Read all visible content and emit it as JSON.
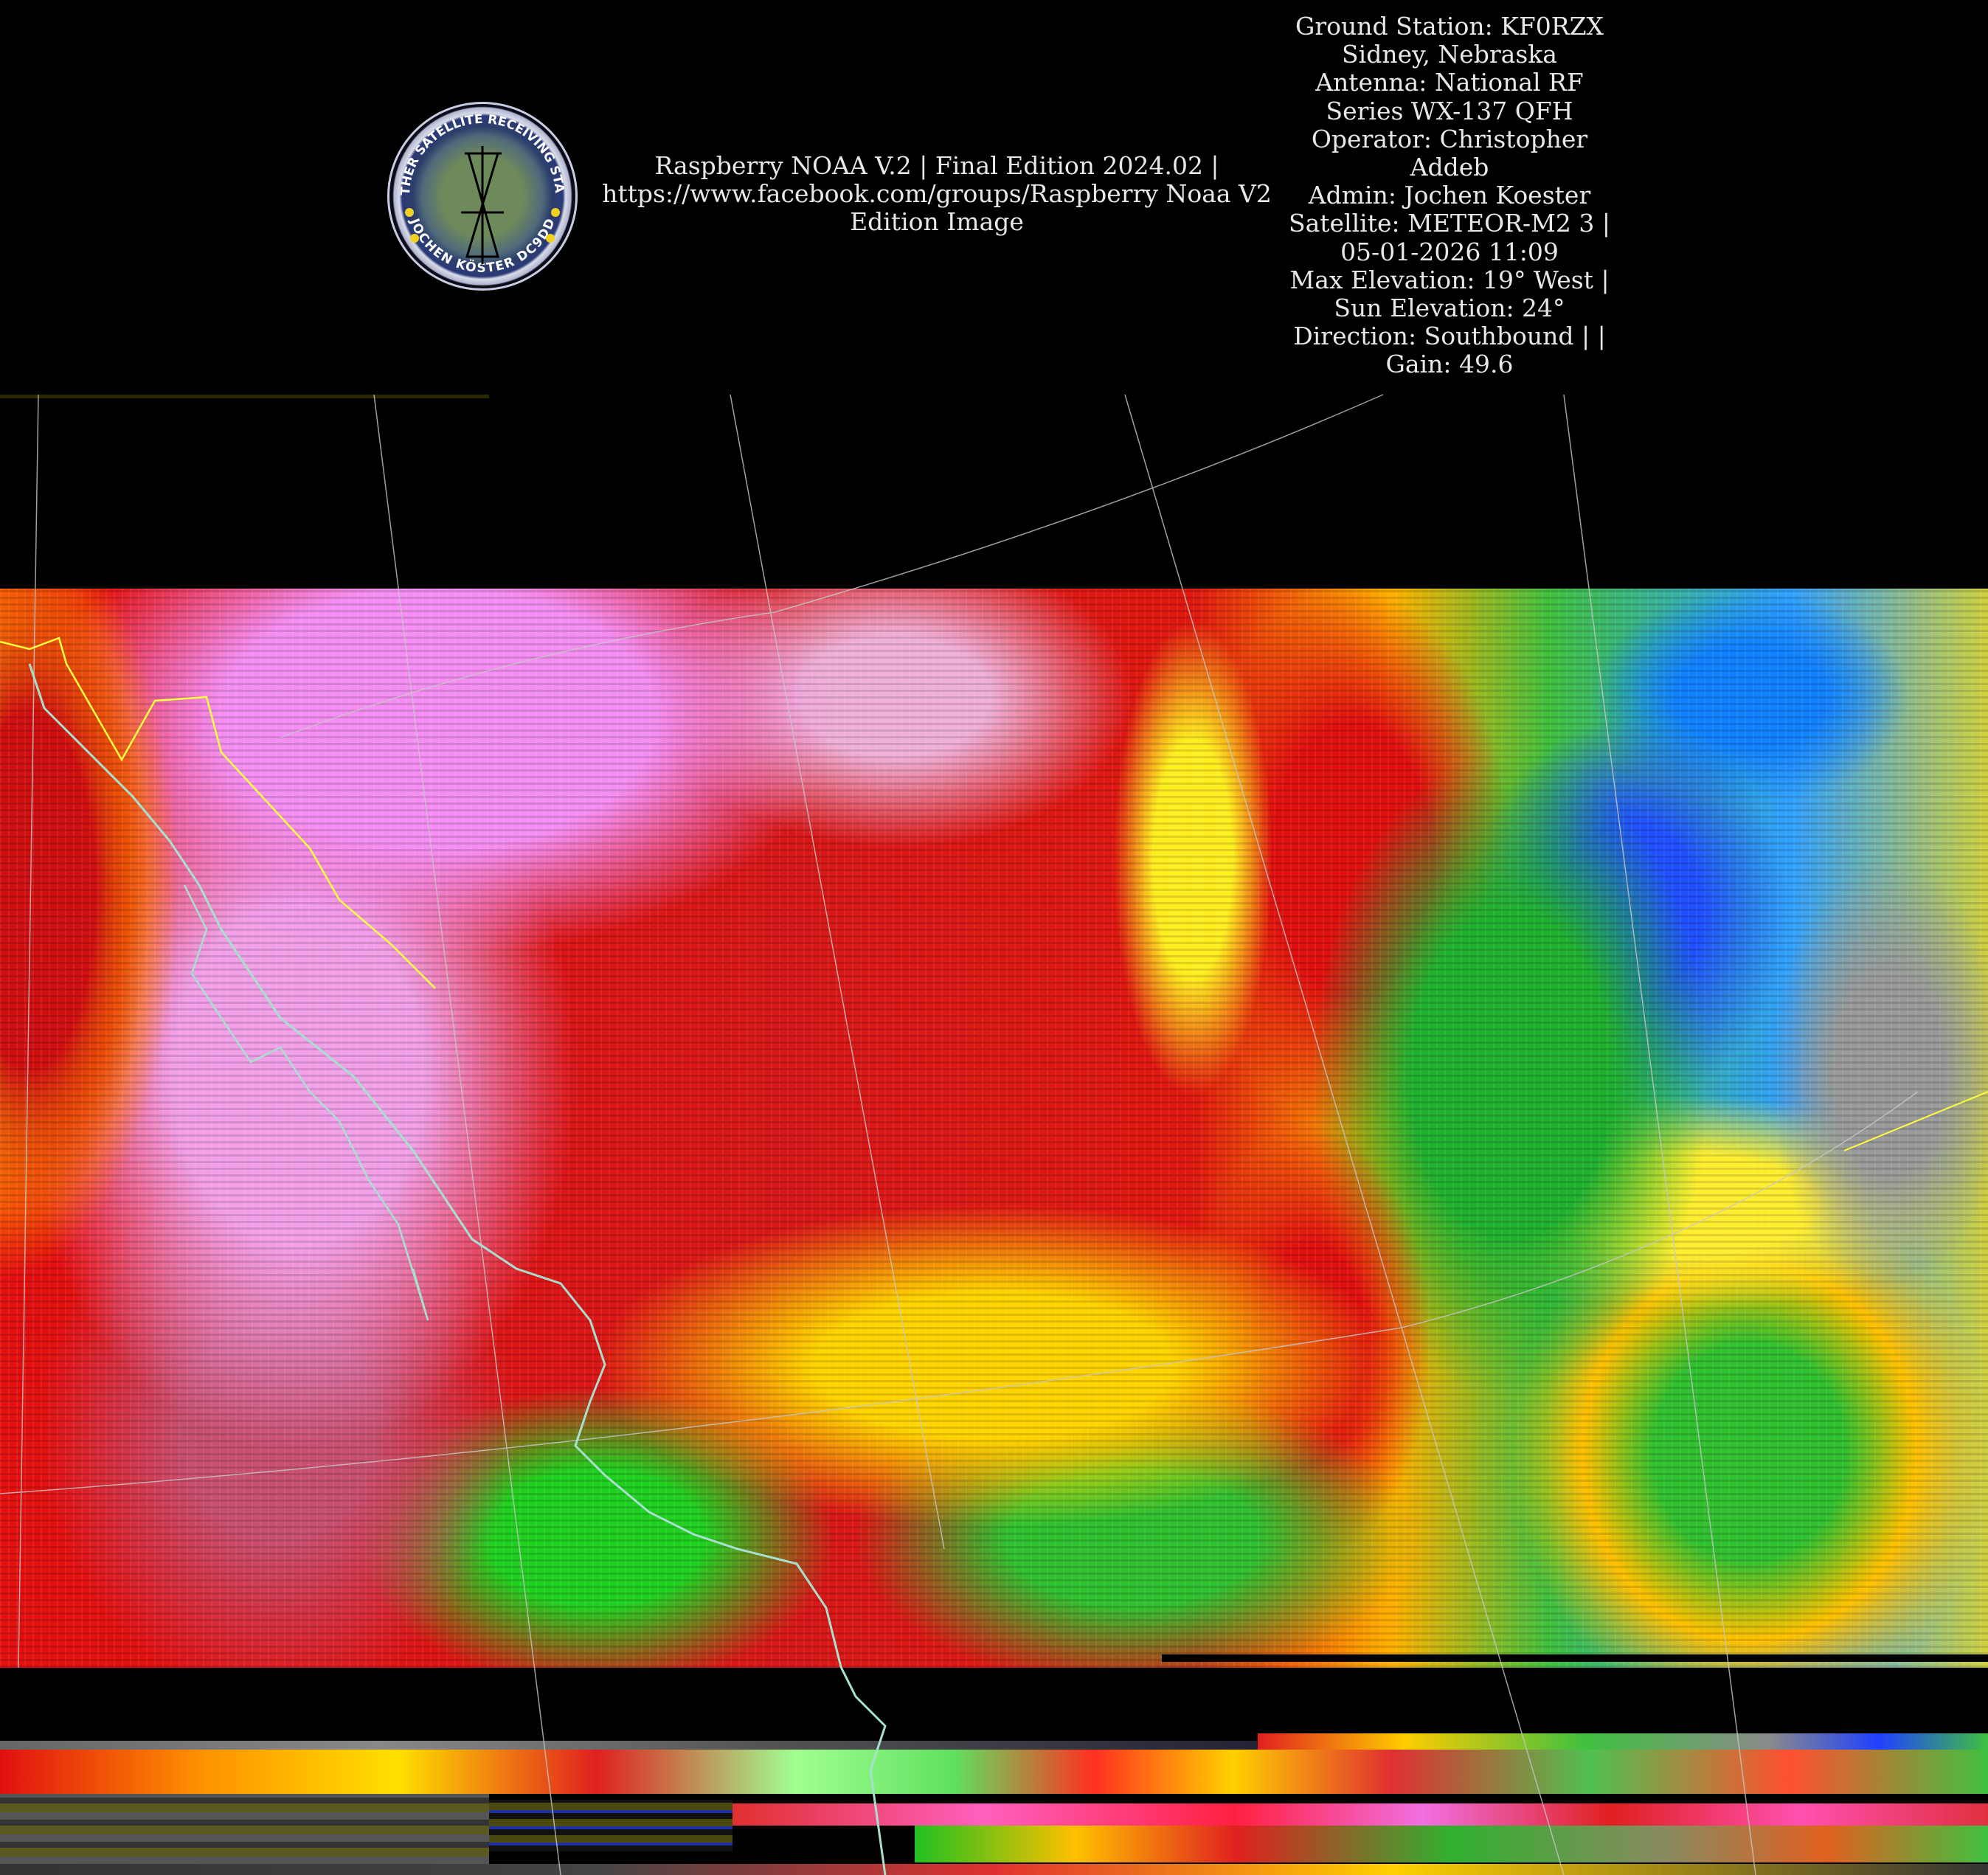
{
  "header": {
    "logo": {
      "text_top": "WEATHER SATELLITE RECEIVING STATION",
      "text_bottom": "JOCHEN KÖSTER DC9DD"
    },
    "center_lines": [
      "Raspberry NOAA V.2 | Final Edition 2024.02 |",
      "https://www.facebook.com/groups/Raspberry Noaa V2",
      "Edition Image"
    ],
    "info_lines": [
      "Ground Station: KF0RZX",
      "Sidney, Nebraska",
      "Antenna: National RF",
      "Series WX-137 QFH",
      "Operator: Christopher",
      "Addeb",
      "Admin: Jochen Koester",
      "Satellite: METEOR-M2 3 |",
      "05-01-2026 11:09",
      "Max Elevation: 19° West |",
      "Sun Elevation: 24°",
      "Direction: Southbound | |",
      "Gain: 49.6"
    ]
  },
  "image": {
    "type": "satellite-thermal-ir-false-color",
    "colors": {
      "background": "#000000",
      "coastline": "#a8e0d0",
      "border": "#ffff40",
      "graticule": "#c8c8c8"
    }
  }
}
